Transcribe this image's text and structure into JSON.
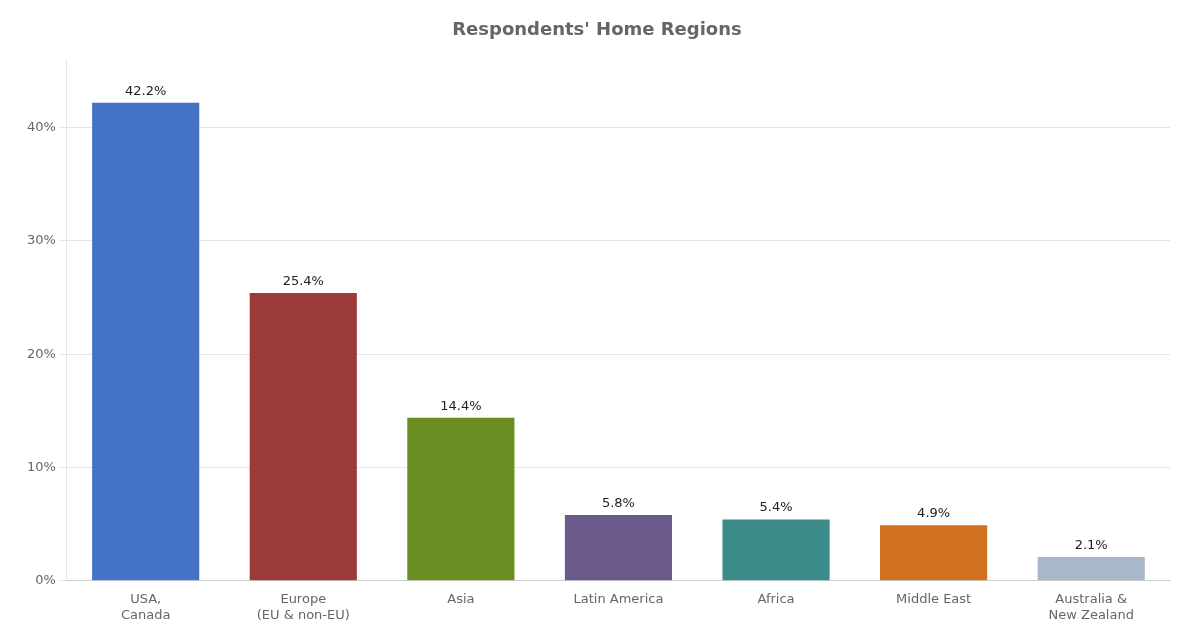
{
  "chart_data": {
    "type": "bar",
    "title": "Respondents' Home Regions",
    "categories": [
      "USA,\nCanada",
      "Europe\n(EU & non-EU)",
      "Asia",
      "Latin America",
      "Africa",
      "Middle East",
      "Australia &\nNew Zealand"
    ],
    "values": [
      42.2,
      25.4,
      14.4,
      5.8,
      5.4,
      4.9,
      2.1
    ],
    "value_labels": [
      "42.2%",
      "25.4%",
      "14.4%",
      "5.8%",
      "5.4%",
      "4.9%",
      "2.1%"
    ],
    "data_labels": true,
    "colors": [
      "#4472C4",
      "#9B3A3A",
      "#6B8E23",
      "#6B5B8B",
      "#3B8B8B",
      "#D07020",
      "#A8B8C8"
    ],
    "ylim": [
      0,
      46
    ],
    "yticks": [
      {
        "value": 0,
        "label": "0%"
      },
      {
        "value": 10,
        "label": "10%"
      },
      {
        "value": 20,
        "label": "20%"
      },
      {
        "value": 30,
        "label": "30%"
      },
      {
        "value": 40,
        "label": "40%"
      }
    ],
    "grid": true
  }
}
